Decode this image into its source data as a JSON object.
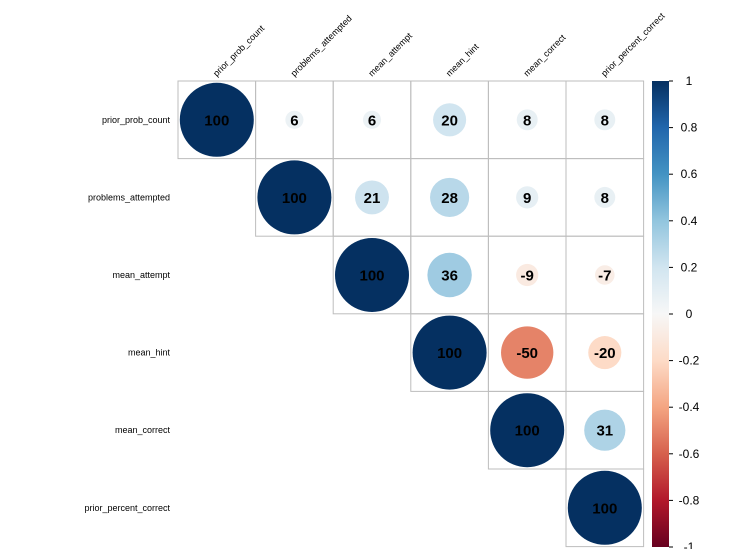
{
  "chart_data": {
    "type": "heatmap",
    "subtype": "correlation-circle-upper",
    "variables": [
      "prior_prob_count",
      "problems_attempted",
      "mean_attempt",
      "mean_hint",
      "mean_correct",
      "prior_percent_correct"
    ],
    "matrix": [
      [
        100,
        6,
        6,
        20,
        8,
        8
      ],
      [
        null,
        100,
        21,
        28,
        9,
        8
      ],
      [
        null,
        null,
        100,
        36,
        -9,
        -7
      ],
      [
        null,
        null,
        null,
        100,
        -50,
        -20
      ],
      [
        null,
        null,
        null,
        null,
        100,
        31
      ],
      [
        null,
        null,
        null,
        null,
        null,
        100
      ]
    ],
    "colorbar": {
      "range": [
        -1,
        1
      ],
      "ticks": [
        "1",
        "0.8",
        "0.6",
        "0.4",
        "0.2",
        "0",
        "-0.2",
        "-0.4",
        "-0.6",
        "-0.8",
        "-1"
      ],
      "colors": [
        "#67001f",
        "#b2182b",
        "#d6604d",
        "#f4a582",
        "#fddbc7",
        "#f7f7f7",
        "#d1e5f0",
        "#92c5de",
        "#4393c3",
        "#2166ac",
        "#053061"
      ]
    },
    "grid": true,
    "legend": "right"
  }
}
